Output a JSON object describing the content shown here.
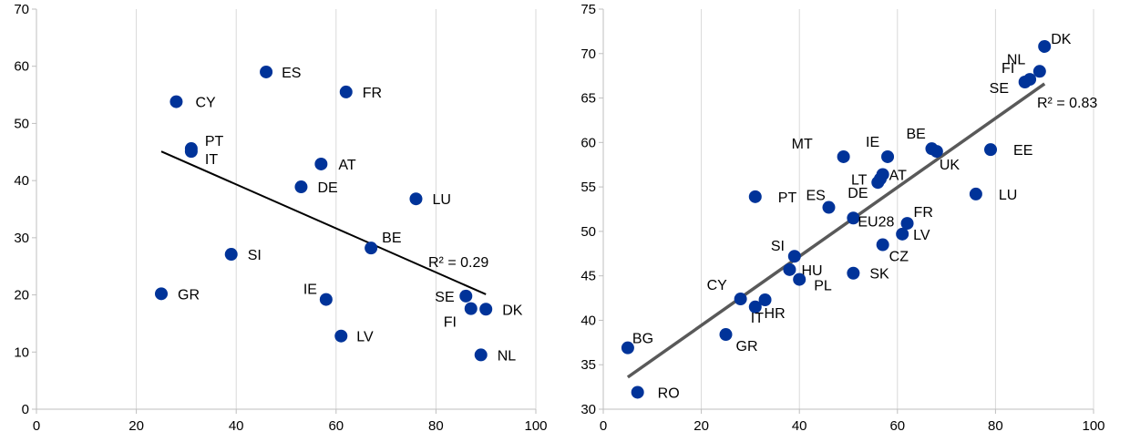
{
  "chart_data": [
    {
      "type": "scatter",
      "xlim": [
        0,
        100
      ],
      "ylim": [
        0,
        70
      ],
      "x_ticks": [
        0,
        20,
        40,
        60,
        80,
        100
      ],
      "y_ticks": [
        0,
        10,
        20,
        30,
        40,
        50,
        60,
        70
      ],
      "grid": "vertical",
      "marker_color": "#003399",
      "points": [
        {
          "label": "ES",
          "x": 46,
          "y": 59
        },
        {
          "label": "FR",
          "x": 62,
          "y": 55.5
        },
        {
          "label": "CY",
          "x": 28,
          "y": 53.8
        },
        {
          "label": "PT",
          "x": 31,
          "y": 45.6
        },
        {
          "label": "IT",
          "x": 31,
          "y": 45.1
        },
        {
          "label": "AT",
          "x": 57,
          "y": 42.9
        },
        {
          "label": "DE",
          "x": 53,
          "y": 38.9
        },
        {
          "label": "LU",
          "x": 76,
          "y": 36.8
        },
        {
          "label": "BE",
          "x": 67,
          "y": 28.2
        },
        {
          "label": "SI",
          "x": 39,
          "y": 27.1
        },
        {
          "label": "GR",
          "x": 25,
          "y": 20.2
        },
        {
          "label": "SE",
          "x": 86,
          "y": 19.8
        },
        {
          "label": "IE",
          "x": 58,
          "y": 19.2
        },
        {
          "label": "FI",
          "x": 87,
          "y": 17.6
        },
        {
          "label": "DK",
          "x": 90,
          "y": 17.5
        },
        {
          "label": "LV",
          "x": 61,
          "y": 12.8
        },
        {
          "label": "NL",
          "x": 89,
          "y": 9.5
        }
      ],
      "trendline": {
        "x1": 25,
        "y1": 45.1,
        "x2": 90,
        "y2": 20.1,
        "color": "#000000"
      },
      "r2_label": "R² = 0.29"
    },
    {
      "type": "scatter",
      "xlim": [
        0,
        100
      ],
      "ylim": [
        30,
        75
      ],
      "x_ticks": [
        0,
        20,
        40,
        60,
        80,
        100
      ],
      "y_ticks": [
        30,
        35,
        40,
        45,
        50,
        55,
        60,
        65,
        70,
        75
      ],
      "grid": "vertical",
      "marker_color": "#003399",
      "points": [
        {
          "label": "DK",
          "x": 90,
          "y": 70.8
        },
        {
          "label": "NL",
          "x": 89,
          "y": 68
        },
        {
          "label": "FI",
          "x": 87,
          "y": 67.1
        },
        {
          "label": "SE",
          "x": 86,
          "y": 66.8
        },
        {
          "label": "BE",
          "x": 67,
          "y": 59.3
        },
        {
          "label": "UK",
          "x": 68,
          "y": 59
        },
        {
          "label": "EE",
          "x": 79,
          "y": 59.2
        },
        {
          "label": "MT",
          "x": 49,
          "y": 58.4
        },
        {
          "label": "IE",
          "x": 58,
          "y": 58.4
        },
        {
          "label": "AT",
          "x": 57,
          "y": 56.4
        },
        {
          "label": "LT",
          "x": 56.5,
          "y": 55.9
        },
        {
          "label": "DE",
          "x": 56,
          "y": 55.5
        },
        {
          "label": "LU",
          "x": 76,
          "y": 54.2
        },
        {
          "label": "PT",
          "x": 31,
          "y": 53.9
        },
        {
          "label": "ES",
          "x": 46,
          "y": 52.7
        },
        {
          "label": "EU28",
          "x": 51,
          "y": 51.5
        },
        {
          "label": "FR",
          "x": 62,
          "y": 50.9
        },
        {
          "label": "LV",
          "x": 61,
          "y": 49.7
        },
        {
          "label": "CZ",
          "x": 57,
          "y": 48.5
        },
        {
          "label": "SI",
          "x": 39,
          "y": 47.2
        },
        {
          "label": "HU",
          "x": 38,
          "y": 45.7
        },
        {
          "label": "SK",
          "x": 51,
          "y": 45.3
        },
        {
          "label": "PL",
          "x": 40,
          "y": 44.6
        },
        {
          "label": "CY",
          "x": 28,
          "y": 42.4
        },
        {
          "label": "HR",
          "x": 33,
          "y": 42.3
        },
        {
          "label": "IT",
          "x": 31,
          "y": 41.5
        },
        {
          "label": "GR",
          "x": 25,
          "y": 38.4
        },
        {
          "label": "BG",
          "x": 5,
          "y": 36.9
        },
        {
          "label": "RO",
          "x": 7,
          "y": 31.9
        }
      ],
      "trendline": {
        "x1": 5,
        "y1": 33.6,
        "x2": 90,
        "y2": 66.6,
        "color": "#595959"
      },
      "r2_label": "R² = 0.83"
    }
  ]
}
